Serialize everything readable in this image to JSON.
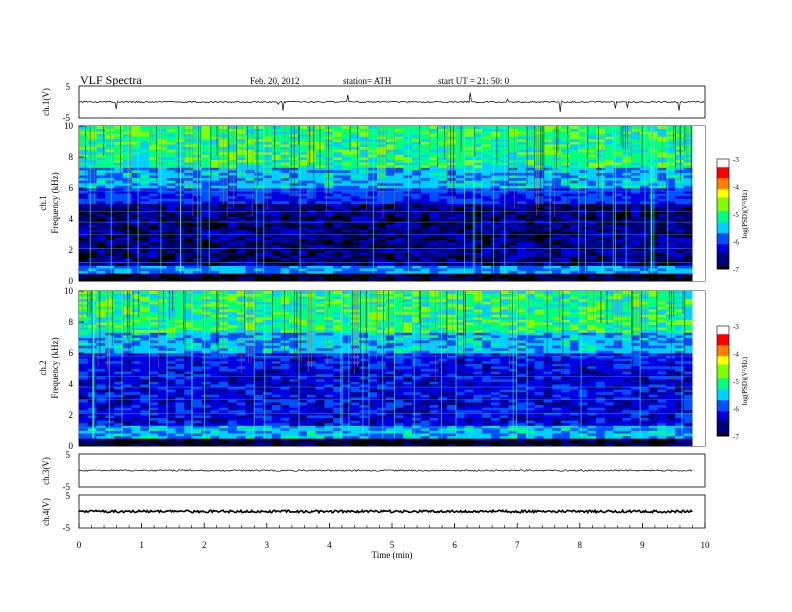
{
  "header": {
    "title": "VLF  Spectra",
    "date": "Feb. 20, 2012",
    "station": "station= ATH",
    "start": "start  UT  =   21: 50: 0"
  },
  "colors": {
    "waveform": "#000000",
    "colormap": [
      "#000000",
      "#00007a",
      "#0000e0",
      "#0050ff",
      "#00d0ff",
      "#00ff80",
      "#80ff00",
      "#ffff00",
      "#ff8000",
      "#ff0000",
      "#ffffff"
    ]
  },
  "chart_data": [
    {
      "type": "line",
      "name": "ch1-waveform",
      "ylabel": "ch.1(V)",
      "yticks": [
        "5",
        "-5"
      ],
      "ylim": [
        -5,
        5
      ],
      "xlim": [
        0,
        10
      ],
      "baseline": 0
    },
    {
      "type": "heatmap",
      "name": "ch1-spectrogram",
      "ylabel": "ch.1\nFrequency (kHz)",
      "yticks": [
        "0",
        "2",
        "4",
        "6",
        "8",
        "10"
      ],
      "ylim": [
        0,
        10
      ],
      "xlim": [
        0,
        9.8
      ],
      "colorbar": {
        "label": "log(PSD)(V²/Hz)",
        "ticks": [
          "-3",
          "-4",
          "-5",
          "-6",
          "-7"
        ],
        "range": [
          -7,
          -3
        ]
      },
      "bands_khz": [
        {
          "from": 0,
          "to": 0.4,
          "level": -6.9
        },
        {
          "from": 0.4,
          "to": 1.0,
          "level": -5.6
        },
        {
          "from": 1.0,
          "to": 5.0,
          "level": -6.6
        },
        {
          "from": 5.0,
          "to": 6.0,
          "level": -6.0
        },
        {
          "from": 6.0,
          "to": 7.2,
          "level": -5.5
        },
        {
          "from": 7.2,
          "to": 10.0,
          "level": -5.0
        }
      ]
    },
    {
      "type": "heatmap",
      "name": "ch2-spectrogram",
      "ylabel": "ch.2\nFrequency (kHz)",
      "yticks": [
        "0",
        "2",
        "4",
        "6",
        "8",
        "10"
      ],
      "ylim": [
        0,
        10
      ],
      "xlim": [
        0,
        9.8
      ],
      "colorbar": {
        "label": "log(PSD)(V²/Hz)",
        "ticks": [
          "-3",
          "-4",
          "-5",
          "-6",
          "-7"
        ],
        "range": [
          -7,
          -3
        ]
      },
      "bands_khz": [
        {
          "from": 0,
          "to": 0.4,
          "level": -6.9
        },
        {
          "from": 0.4,
          "to": 1.2,
          "level": -5.5
        },
        {
          "from": 1.2,
          "to": 5.0,
          "level": -6.2
        },
        {
          "from": 5.0,
          "to": 6.0,
          "level": -6.1
        },
        {
          "from": 6.0,
          "to": 7.2,
          "level": -5.5
        },
        {
          "from": 7.2,
          "to": 10.0,
          "level": -5.0
        }
      ]
    },
    {
      "type": "line",
      "name": "ch3-waveform",
      "ylabel": "ch.3(V)",
      "yticks": [
        "5",
        "-5"
      ],
      "ylim": [
        -5,
        5
      ],
      "xlim": [
        0,
        9.8
      ],
      "baseline": 0
    },
    {
      "type": "line",
      "name": "ch4-waveform",
      "ylabel": "ch.4(V)",
      "yticks": [
        "5",
        "-5"
      ],
      "ylim": [
        -5,
        5
      ],
      "xlim": [
        0,
        9.8
      ],
      "baseline": 0
    }
  ],
  "xaxis": {
    "label": "Time  (min)",
    "ticks": [
      "0",
      "1",
      "2",
      "3",
      "4",
      "5",
      "6",
      "7",
      "8",
      "9",
      "10"
    ],
    "xlim": [
      0,
      10
    ]
  }
}
